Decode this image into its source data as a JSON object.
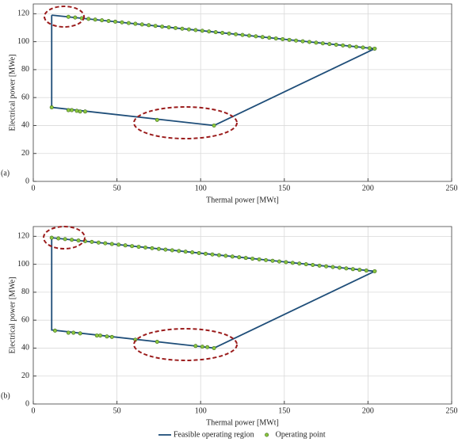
{
  "chart_data": [
    {
      "type": "line-scatter",
      "panel_label": "(a)",
      "xlabel": "Thermal power [MWt]",
      "ylabel": "Electrical power [MWe]",
      "xlim": [
        0,
        250
      ],
      "ylim": [
        0,
        127
      ],
      "xticks": [
        0,
        50,
        100,
        150,
        200,
        250
      ],
      "yticks": [
        0,
        20,
        40,
        60,
        80,
        100,
        120
      ],
      "grid": true,
      "legend": "bottom",
      "series": [
        {
          "name": "Feasible operating region",
          "kind": "line",
          "color": "#1f4e79",
          "x": [
            11,
            204,
            108,
            11,
            11
          ],
          "values": [
            119,
            95,
            40,
            53,
            119
          ]
        },
        {
          "name": "Operating point",
          "kind": "scatter",
          "color": "#8cc63f",
          "x": [
            21,
            25,
            29,
            33,
            37,
            41,
            45,
            49,
            53,
            57,
            61,
            65,
            69,
            73,
            77,
            81,
            85,
            89,
            93,
            97,
            101,
            105,
            109,
            113,
            117,
            121,
            125,
            129,
            133,
            137,
            141,
            145,
            149,
            153,
            157,
            161,
            165,
            169,
            173,
            177,
            181,
            185,
            189,
            193,
            197,
            201,
            204,
            11,
            21,
            23,
            26,
            28,
            31,
            74,
            108
          ],
          "values": [
            117.8,
            117.3,
            116.8,
            116.3,
            115.8,
            115.3,
            114.8,
            114.3,
            113.8,
            113.3,
            112.8,
            112.3,
            111.8,
            111.3,
            110.8,
            110.3,
            109.8,
            109.3,
            108.8,
            108.3,
            107.8,
            107.3,
            106.8,
            106.3,
            105.8,
            105.3,
            104.8,
            104.3,
            103.8,
            103.3,
            102.8,
            102.3,
            101.8,
            101.3,
            100.8,
            100.3,
            99.8,
            99.3,
            98.8,
            98.3,
            97.8,
            97.3,
            96.8,
            96.3,
            95.8,
            95.3,
            95,
            53,
            51,
            51,
            50.5,
            50,
            50,
            44,
            40
          ]
        }
      ]
    },
    {
      "type": "line-scatter",
      "panel_label": "(b)",
      "xlabel": "Thermal power [MWt]",
      "ylabel": "Electrical power [MWe]",
      "xlim": [
        0,
        250
      ],
      "ylim": [
        0,
        127
      ],
      "xticks": [
        0,
        50,
        100,
        150,
        200,
        250
      ],
      "yticks": [
        0,
        20,
        40,
        60,
        80,
        100,
        120
      ],
      "grid": true,
      "series": [
        {
          "name": "Feasible operating region",
          "kind": "line",
          "color": "#1f4e79",
          "x": [
            11,
            204,
            108,
            11,
            11
          ],
          "values": [
            119,
            95,
            40,
            53,
            119
          ]
        },
        {
          "name": "Operating point",
          "kind": "scatter",
          "color": "#8cc63f",
          "x": [
            11,
            15,
            19,
            23,
            27,
            31,
            35,
            39,
            43,
            47,
            51,
            55,
            59,
            63,
            67,
            71,
            75,
            79,
            83,
            87,
            91,
            95,
            99,
            103,
            107,
            111,
            115,
            119,
            123,
            127,
            131,
            135,
            139,
            143,
            147,
            151,
            155,
            159,
            163,
            167,
            171,
            175,
            179,
            183,
            187,
            191,
            195,
            199,
            204,
            13,
            21,
            24,
            28,
            38,
            40,
            44,
            47,
            61,
            74,
            97,
            101,
            104,
            108
          ],
          "values": [
            119,
            118.5,
            118,
            117.5,
            117,
            116.5,
            116,
            115.5,
            115,
            114.5,
            114,
            113.5,
            113,
            112.5,
            112,
            111.5,
            111,
            110.5,
            110,
            109.5,
            109,
            108.5,
            108,
            107.5,
            107,
            106.5,
            106,
            105.5,
            105,
            104.5,
            104,
            103.5,
            103,
            102.5,
            102,
            101.5,
            101,
            100.5,
            100,
            99.5,
            99,
            98.5,
            98,
            97.5,
            97,
            96.5,
            96,
            95.5,
            95,
            52.5,
            51,
            51,
            50.5,
            49,
            49,
            48.3,
            48,
            46,
            44.5,
            41.5,
            41,
            40.7,
            40
          ]
        }
      ]
    }
  ]
}
